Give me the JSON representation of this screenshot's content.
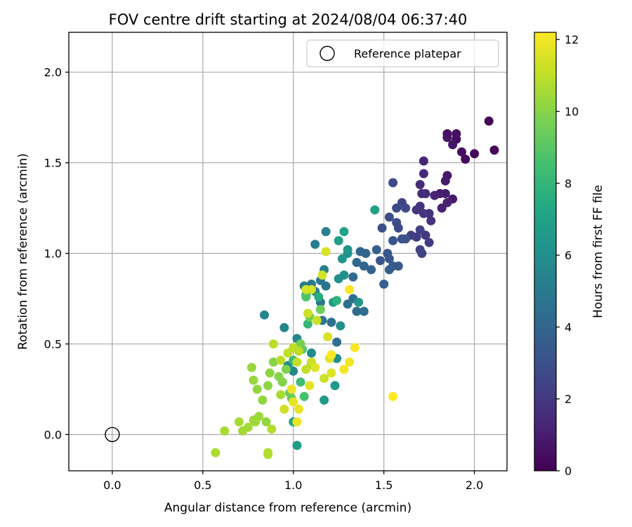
{
  "chart_data": {
    "type": "scatter",
    "title": "FOV centre drift starting at 2024/08/04 06:37:40",
    "xlabel": "Angular distance from reference (arcmin)",
    "ylabel": "Rotation from reference (arcmin)",
    "xlim": [
      -0.24,
      2.18
    ],
    "ylim": [
      -0.2,
      2.22
    ],
    "xticks": [
      0.0,
      0.5,
      1.0,
      1.5,
      2.0
    ],
    "yticks": [
      0.0,
      0.5,
      1.0,
      1.5,
      2.0
    ],
    "xtick_labels": [
      "0.0",
      "0.5",
      "1.0",
      "1.5",
      "2.0"
    ],
    "ytick_labels": [
      "0.0",
      "0.5",
      "1.0",
      "1.5",
      "2.0"
    ],
    "grid": true,
    "legend": {
      "position": "top-right",
      "entries": [
        "Reference platepar"
      ]
    },
    "reference_point": {
      "x": 0.0,
      "y": 0.0,
      "label": "Reference platepar"
    },
    "colorbar": {
      "label": "Hours from first FF file",
      "colormap": "viridis",
      "range": [
        0,
        12.2
      ],
      "ticks": [
        0,
        2,
        4,
        6,
        8,
        10,
        12
      ],
      "tick_labels": [
        "0",
        "2",
        "4",
        "6",
        "8",
        "10",
        "12"
      ]
    },
    "points": [
      {
        "x": 2.08,
        "y": 1.73,
        "h": 0.1
      },
      {
        "x": 2.11,
        "y": 1.57,
        "h": 0.2
      },
      {
        "x": 2.0,
        "y": 1.55,
        "h": 0.3
      },
      {
        "x": 1.95,
        "y": 1.52,
        "h": 0.3
      },
      {
        "x": 1.93,
        "y": 1.56,
        "h": 0.4
      },
      {
        "x": 1.9,
        "y": 1.63,
        "h": 0.4
      },
      {
        "x": 1.9,
        "y": 1.66,
        "h": 0.5
      },
      {
        "x": 1.85,
        "y": 1.66,
        "h": 0.5
      },
      {
        "x": 1.85,
        "y": 1.64,
        "h": 0.6
      },
      {
        "x": 1.88,
        "y": 1.6,
        "h": 0.7
      },
      {
        "x": 1.85,
        "y": 1.43,
        "h": 0.8
      },
      {
        "x": 1.84,
        "y": 1.4,
        "h": 0.9
      },
      {
        "x": 1.88,
        "y": 1.3,
        "h": 0.9
      },
      {
        "x": 1.84,
        "y": 1.33,
        "h": 1.0
      },
      {
        "x": 1.81,
        "y": 1.33,
        "h": 1.0
      },
      {
        "x": 1.82,
        "y": 1.25,
        "h": 1.1
      },
      {
        "x": 1.85,
        "y": 1.28,
        "h": 1.2
      },
      {
        "x": 1.78,
        "y": 1.32,
        "h": 1.2
      },
      {
        "x": 1.72,
        "y": 1.51,
        "h": 1.3
      },
      {
        "x": 1.72,
        "y": 1.44,
        "h": 1.4
      },
      {
        "x": 1.7,
        "y": 1.38,
        "h": 1.5
      },
      {
        "x": 1.71,
        "y": 1.33,
        "h": 1.5
      },
      {
        "x": 1.73,
        "y": 1.33,
        "h": 1.6
      },
      {
        "x": 1.75,
        "y": 1.22,
        "h": 1.7
      },
      {
        "x": 1.76,
        "y": 1.18,
        "h": 1.7
      },
      {
        "x": 1.7,
        "y": 1.26,
        "h": 1.8
      },
      {
        "x": 1.68,
        "y": 1.24,
        "h": 1.9
      },
      {
        "x": 1.72,
        "y": 1.22,
        "h": 1.9
      },
      {
        "x": 1.73,
        "y": 1.1,
        "h": 2.0
      },
      {
        "x": 1.75,
        "y": 1.06,
        "h": 2.1
      },
      {
        "x": 1.68,
        "y": 1.09,
        "h": 2.1
      },
      {
        "x": 1.65,
        "y": 1.1,
        "h": 2.2
      },
      {
        "x": 1.7,
        "y": 1.13,
        "h": 2.3
      },
      {
        "x": 1.71,
        "y": 1.0,
        "h": 2.3
      },
      {
        "x": 1.7,
        "y": 1.02,
        "h": 2.4
      },
      {
        "x": 1.6,
        "y": 1.28,
        "h": 2.5
      },
      {
        "x": 1.62,
        "y": 1.25,
        "h": 2.6
      },
      {
        "x": 1.57,
        "y": 1.25,
        "h": 2.6
      },
      {
        "x": 1.55,
        "y": 1.39,
        "h": 2.7
      },
      {
        "x": 1.57,
        "y": 1.17,
        "h": 2.8
      },
      {
        "x": 1.58,
        "y": 1.14,
        "h": 2.8
      },
      {
        "x": 1.53,
        "y": 1.2,
        "h": 2.9
      },
      {
        "x": 1.49,
        "y": 1.14,
        "h": 3.0
      },
      {
        "x": 1.6,
        "y": 1.08,
        "h": 3.0
      },
      {
        "x": 1.62,
        "y": 1.08,
        "h": 3.1
      },
      {
        "x": 1.55,
        "y": 1.07,
        "h": 3.2
      },
      {
        "x": 1.52,
        "y": 1.0,
        "h": 3.3
      },
      {
        "x": 1.48,
        "y": 0.96,
        "h": 3.3
      },
      {
        "x": 1.53,
        "y": 0.97,
        "h": 3.4
      },
      {
        "x": 1.58,
        "y": 0.93,
        "h": 3.5
      },
      {
        "x": 1.55,
        "y": 0.93,
        "h": 3.5
      },
      {
        "x": 1.53,
        "y": 0.91,
        "h": 3.6
      },
      {
        "x": 1.5,
        "y": 0.83,
        "h": 3.7
      },
      {
        "x": 1.46,
        "y": 1.02,
        "h": 3.8
      },
      {
        "x": 1.43,
        "y": 0.91,
        "h": 3.8
      },
      {
        "x": 1.4,
        "y": 1.0,
        "h": 3.9
      },
      {
        "x": 1.37,
        "y": 1.01,
        "h": 4.0
      },
      {
        "x": 1.39,
        "y": 0.93,
        "h": 4.0
      },
      {
        "x": 1.35,
        "y": 0.95,
        "h": 4.1
      },
      {
        "x": 1.33,
        "y": 0.87,
        "h": 4.2
      },
      {
        "x": 1.39,
        "y": 0.68,
        "h": 4.3
      },
      {
        "x": 1.35,
        "y": 0.68,
        "h": 4.3
      },
      {
        "x": 1.33,
        "y": 0.75,
        "h": 4.4
      },
      {
        "x": 1.3,
        "y": 0.72,
        "h": 4.5
      },
      {
        "x": 1.24,
        "y": 0.51,
        "h": 4.5
      },
      {
        "x": 1.21,
        "y": 0.62,
        "h": 4.6
      },
      {
        "x": 1.16,
        "y": 0.63,
        "h": 4.7
      },
      {
        "x": 1.15,
        "y": 0.73,
        "h": 4.8
      },
      {
        "x": 1.18,
        "y": 0.82,
        "h": 4.8
      },
      {
        "x": 1.15,
        "y": 0.85,
        "h": 4.9
      },
      {
        "x": 1.1,
        "y": 0.83,
        "h": 5.0
      },
      {
        "x": 1.06,
        "y": 0.82,
        "h": 5.0
      },
      {
        "x": 1.12,
        "y": 1.05,
        "h": 5.1
      },
      {
        "x": 1.18,
        "y": 1.12,
        "h": 5.2
      },
      {
        "x": 1.17,
        "y": 0.91,
        "h": 5.3
      },
      {
        "x": 1.12,
        "y": 0.79,
        "h": 5.3
      },
      {
        "x": 1.07,
        "y": 0.77,
        "h": 5.4
      },
      {
        "x": 0.84,
        "y": 0.66,
        "h": 5.5
      },
      {
        "x": 0.95,
        "y": 0.59,
        "h": 5.5
      },
      {
        "x": 1.02,
        "y": 0.53,
        "h": 5.6
      },
      {
        "x": 1.0,
        "y": 0.35,
        "h": 5.7
      },
      {
        "x": 0.97,
        "y": 0.38,
        "h": 5.8
      },
      {
        "x": 1.1,
        "y": 0.45,
        "h": 5.8
      },
      {
        "x": 1.24,
        "y": 0.42,
        "h": 5.9
      },
      {
        "x": 1.26,
        "y": 0.6,
        "h": 6.0
      },
      {
        "x": 1.25,
        "y": 0.86,
        "h": 6.0
      },
      {
        "x": 1.28,
        "y": 0.88,
        "h": 6.1
      },
      {
        "x": 1.3,
        "y": 1.0,
        "h": 6.2
      },
      {
        "x": 1.3,
        "y": 1.02,
        "h": 6.3
      },
      {
        "x": 1.27,
        "y": 0.97,
        "h": 6.3
      },
      {
        "x": 1.36,
        "y": 0.73,
        "h": 6.4
      },
      {
        "x": 1.22,
        "y": 0.73,
        "h": 6.5
      },
      {
        "x": 1.23,
        "y": 0.27,
        "h": 6.5
      },
      {
        "x": 1.17,
        "y": 0.19,
        "h": 6.6
      },
      {
        "x": 1.02,
        "y": -0.06,
        "h": 6.7
      },
      {
        "x": 1.25,
        "y": 1.07,
        "h": 6.8
      },
      {
        "x": 1.45,
        "y": 1.24,
        "h": 6.9
      },
      {
        "x": 1.28,
        "y": 1.12,
        "h": 7.0
      },
      {
        "x": 1.0,
        "y": 0.07,
        "h": 7.2
      },
      {
        "x": 1.1,
        "y": 0.39,
        "h": 7.4
      },
      {
        "x": 1.14,
        "y": 0.76,
        "h": 7.6
      },
      {
        "x": 1.24,
        "y": 0.74,
        "h": 7.8
      },
      {
        "x": 1.08,
        "y": 0.61,
        "h": 8.0
      },
      {
        "x": 1.0,
        "y": 0.41,
        "h": 8.2
      },
      {
        "x": 1.04,
        "y": 0.29,
        "h": 8.4
      },
      {
        "x": 1.06,
        "y": 0.21,
        "h": 8.6
      },
      {
        "x": 1.07,
        "y": 0.76,
        "h": 8.8
      },
      {
        "x": 1.05,
        "y": 0.47,
        "h": 9.0
      },
      {
        "x": 0.98,
        "y": 0.23,
        "h": 9.2
      },
      {
        "x": 0.99,
        "y": 0.2,
        "h": 9.4
      },
      {
        "x": 1.15,
        "y": 0.69,
        "h": 9.5
      },
      {
        "x": 1.09,
        "y": 0.65,
        "h": 9.6
      },
      {
        "x": 1.04,
        "y": 0.5,
        "h": 9.7
      },
      {
        "x": 0.96,
        "y": 0.36,
        "h": 9.8
      },
      {
        "x": 0.94,
        "y": 0.29,
        "h": 9.9
      },
      {
        "x": 0.92,
        "y": 0.32,
        "h": 10.0
      },
      {
        "x": 0.89,
        "y": 0.4,
        "h": 10.0
      },
      {
        "x": 0.87,
        "y": 0.34,
        "h": 10.1
      },
      {
        "x": 0.86,
        "y": 0.27,
        "h": 10.1
      },
      {
        "x": 0.83,
        "y": 0.19,
        "h": 10.2
      },
      {
        "x": 0.8,
        "y": 0.25,
        "h": 10.2
      },
      {
        "x": 0.78,
        "y": 0.3,
        "h": 10.3
      },
      {
        "x": 0.77,
        "y": 0.37,
        "h": 10.3
      },
      {
        "x": 0.81,
        "y": 0.1,
        "h": 10.4
      },
      {
        "x": 0.79,
        "y": 0.07,
        "h": 10.4
      },
      {
        "x": 0.75,
        "y": 0.04,
        "h": 10.5
      },
      {
        "x": 0.72,
        "y": 0.02,
        "h": 10.5
      },
      {
        "x": 0.7,
        "y": 0.07,
        "h": 10.6
      },
      {
        "x": 0.62,
        "y": 0.02,
        "h": 10.6
      },
      {
        "x": 0.57,
        "y": -0.1,
        "h": 10.7
      },
      {
        "x": 0.86,
        "y": -0.1,
        "h": 10.7
      },
      {
        "x": 0.86,
        "y": -0.11,
        "h": 10.8
      },
      {
        "x": 0.88,
        "y": 0.03,
        "h": 10.8
      },
      {
        "x": 0.89,
        "y": 0.5,
        "h": 10.9
      },
      {
        "x": 0.93,
        "y": 0.41,
        "h": 10.9
      },
      {
        "x": 0.97,
        "y": 0.45,
        "h": 11.0
      },
      {
        "x": 1.0,
        "y": 0.48,
        "h": 11.0
      },
      {
        "x": 1.03,
        "y": 0.46,
        "h": 11.0
      },
      {
        "x": 1.02,
        "y": 0.4,
        "h": 11.1
      },
      {
        "x": 1.07,
        "y": 0.36,
        "h": 11.1
      },
      {
        "x": 1.1,
        "y": 0.4,
        "h": 11.2
      },
      {
        "x": 1.13,
        "y": 0.63,
        "h": 11.2
      },
      {
        "x": 1.17,
        "y": 0.31,
        "h": 11.3
      },
      {
        "x": 1.08,
        "y": 0.67,
        "h": 11.3
      },
      {
        "x": 1.07,
        "y": 0.8,
        "h": 11.4
      },
      {
        "x": 1.1,
        "y": 0.8,
        "h": 11.4
      },
      {
        "x": 1.16,
        "y": 0.88,
        "h": 11.4
      },
      {
        "x": 1.18,
        "y": 1.01,
        "h": 11.5
      },
      {
        "x": 1.19,
        "y": 0.54,
        "h": 11.5
      },
      {
        "x": 1.2,
        "y": 0.42,
        "h": 11.6
      },
      {
        "x": 1.21,
        "y": 0.34,
        "h": 11.6
      },
      {
        "x": 1.12,
        "y": 0.37,
        "h": 11.7
      },
      {
        "x": 1.09,
        "y": 0.27,
        "h": 11.7
      },
      {
        "x": 1.03,
        "y": 0.14,
        "h": 11.8
      },
      {
        "x": 1.0,
        "y": 0.18,
        "h": 11.8
      },
      {
        "x": 0.99,
        "y": 0.25,
        "h": 11.9
      },
      {
        "x": 1.02,
        "y": 0.07,
        "h": 11.9
      },
      {
        "x": 1.28,
        "y": 0.36,
        "h": 12.0
      },
      {
        "x": 1.31,
        "y": 0.4,
        "h": 12.0
      },
      {
        "x": 1.34,
        "y": 0.48,
        "h": 12.1
      },
      {
        "x": 1.31,
        "y": 0.8,
        "h": 12.1
      },
      {
        "x": 1.55,
        "y": 0.21,
        "h": 12.2
      },
      {
        "x": 1.21,
        "y": 0.44,
        "h": 12.2
      },
      {
        "x": 0.95,
        "y": 0.14,
        "h": 11.3
      },
      {
        "x": 0.93,
        "y": 0.22,
        "h": 10.6
      },
      {
        "x": 0.85,
        "y": 0.07,
        "h": 10.2
      },
      {
        "x": 0.78,
        "y": 0.08,
        "h": 10.4
      }
    ]
  }
}
